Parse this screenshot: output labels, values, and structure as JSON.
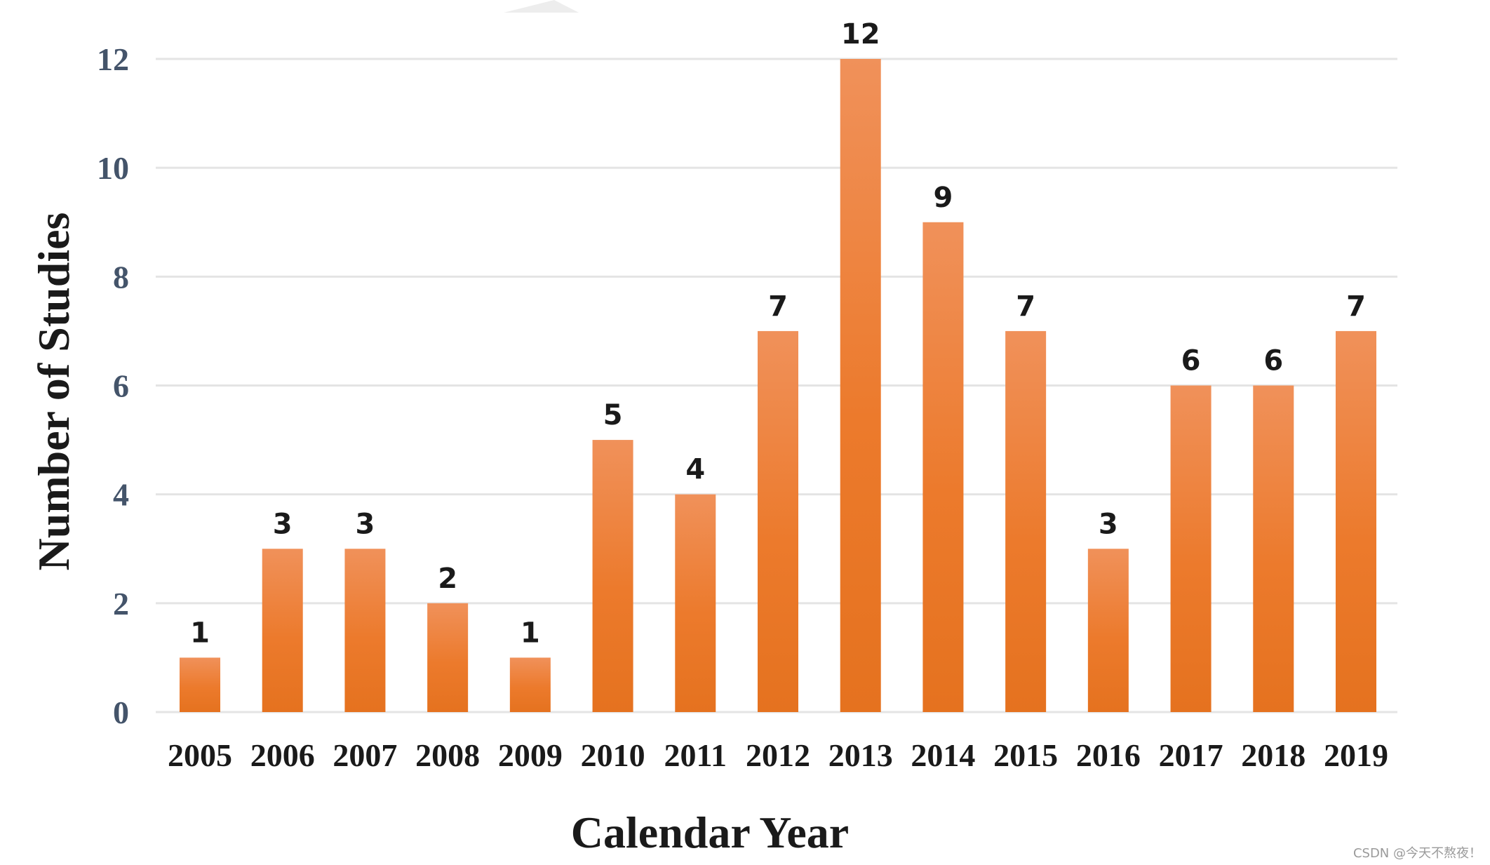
{
  "chart_data": {
    "type": "bar",
    "categories": [
      "2005",
      "2006",
      "2007",
      "2008",
      "2009",
      "2010",
      "2011",
      "2012",
      "2013",
      "2014",
      "2015",
      "2016",
      "2017",
      "2018",
      "2019"
    ],
    "values": [
      1,
      3,
      3,
      2,
      1,
      5,
      4,
      7,
      12,
      9,
      7,
      3,
      6,
      6,
      7
    ],
    "data_labels": [
      "1",
      "3",
      "3",
      "2",
      "1",
      "5",
      "4",
      "7",
      "12",
      "9",
      "7",
      "3",
      "6",
      "6",
      "7"
    ],
    "xlabel": "Calendar Year",
    "ylabel": "Number of Studies",
    "ylim": [
      0,
      12
    ],
    "yticks": [
      "0",
      "2",
      "4",
      "6",
      "8",
      "10",
      "12"
    ],
    "grid": true,
    "legend": "none",
    "bar_color": "#ec7a2c",
    "bar_color_light": "#f0915a",
    "bar_color_dark": "#e5721f"
  },
  "watermark": "CSDN @今天不熬夜！"
}
